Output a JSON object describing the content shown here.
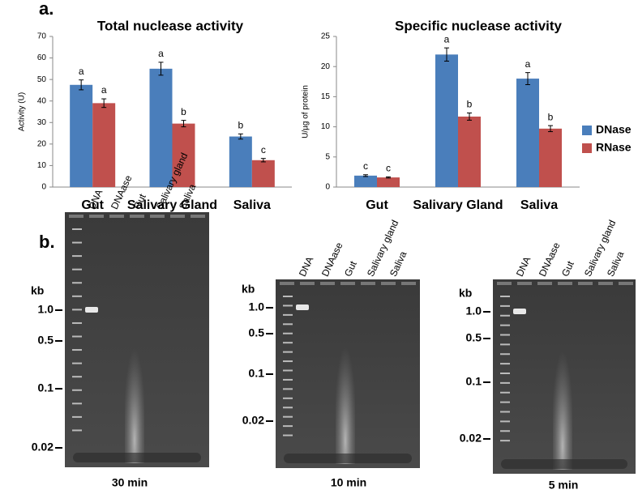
{
  "panel_labels": [
    "a.",
    "b."
  ],
  "chart_data": [
    {
      "type": "bar",
      "title": "Total nuclease activity",
      "y_label": "Activity (U)",
      "categories": [
        "Gut",
        "Salivary Gland",
        "Saliva"
      ],
      "series": [
        {
          "name": "DNase",
          "color": "#4a7ebb",
          "values": [
            47.5,
            55,
            23.5
          ],
          "errors": [
            2.3,
            3,
            1.2
          ],
          "letters": [
            "a",
            "a",
            "b"
          ]
        },
        {
          "name": "RNase",
          "color": "#c0504d",
          "values": [
            39,
            29.5,
            12.5
          ],
          "errors": [
            2,
            1.5,
            0.8
          ],
          "letters": [
            "a",
            "b",
            "c"
          ]
        }
      ],
      "ylim": [
        0,
        70
      ],
      "yticks": [
        0,
        10,
        20,
        30,
        40,
        50,
        60,
        70
      ],
      "grid": false
    },
    {
      "type": "bar",
      "title": "Specific nuclease activity",
      "y_label": "U/µg of protein",
      "categories": [
        "Gut",
        "Salivary Gland",
        "Saliva"
      ],
      "series": [
        {
          "name": "DNase",
          "color": "#4a7ebb",
          "values": [
            1.9,
            22,
            18
          ],
          "errors": [
            0.15,
            1.1,
            1
          ],
          "letters": [
            "c",
            "a",
            "a"
          ]
        },
        {
          "name": "RNase",
          "color": "#c0504d",
          "values": [
            1.6,
            11.7,
            9.7
          ],
          "errors": [
            0.1,
            0.6,
            0.5
          ],
          "letters": [
            "c",
            "b",
            "b"
          ]
        }
      ],
      "ylim": [
        0,
        25
      ],
      "yticks": [
        0,
        5,
        10,
        15,
        20,
        25
      ],
      "grid": false,
      "legend": "right"
    }
  ],
  "gels": [
    {
      "time": "30 min",
      "unit": "kb",
      "markers": [
        "1.0",
        "0.5",
        "0.1",
        "0.02"
      ],
      "lanes": [
        "DNA",
        "DNAase",
        "Gut",
        "Salivary gland",
        "Saliva"
      ]
    },
    {
      "time": "10 min",
      "unit": "kb",
      "markers": [
        "1.0",
        "0.5",
        "0.1",
        "0.02"
      ],
      "lanes": [
        "DNA",
        "DNAase",
        "Gut",
        "Salivary gland",
        "Saliva"
      ]
    },
    {
      "time": "5 min",
      "unit": "kb",
      "markers": [
        "1.0",
        "0.5",
        "0.1",
        "0.02"
      ],
      "lanes": [
        "DNA",
        "DNAase",
        "Gut",
        "Salivary gland",
        "Saliva"
      ]
    }
  ]
}
